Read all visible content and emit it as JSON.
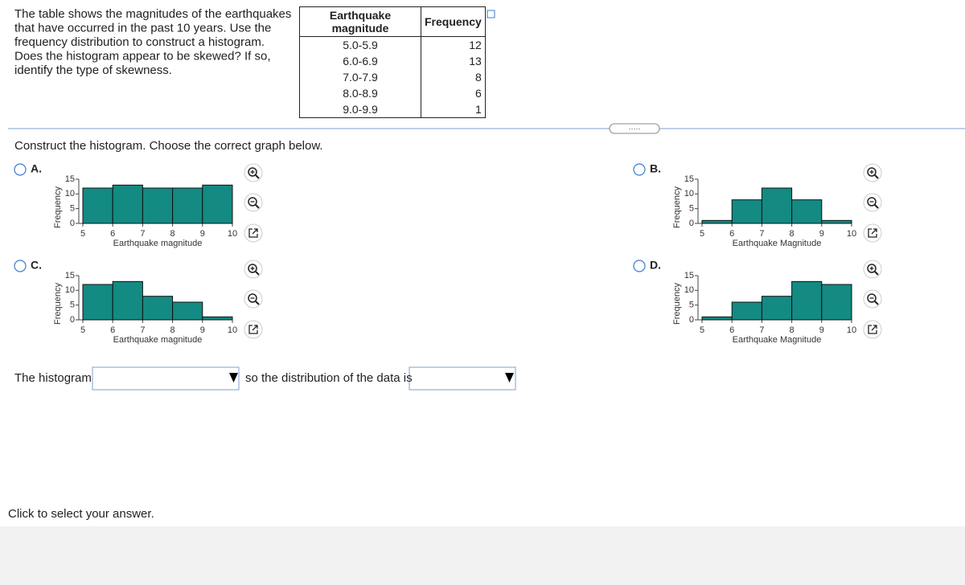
{
  "question": [
    "The table shows the magnitudes of the earthquakes",
    "that have occurred in the past 10 years. Use the",
    "frequency distribution to construct a histogram.",
    "Does the histogram appear to be skewed? If so,",
    "identify the type of skewness."
  ],
  "table": {
    "headers": [
      "Earthquake magnitude",
      "Frequency"
    ],
    "rows": [
      [
        "5.0-5.9",
        "12"
      ],
      [
        "6.0-6.9",
        "13"
      ],
      [
        "7.0-7.9",
        "8"
      ],
      [
        "8.0-8.9",
        "6"
      ],
      [
        "9.0-9.9",
        "1"
      ]
    ]
  },
  "prompt": "Construct the histogram. Choose the correct graph below.",
  "options": [
    {
      "label": "A.",
      "chart": {
        "type": "histogram",
        "bins": [
          5,
          6,
          7,
          8,
          9,
          10
        ],
        "values": [
          12,
          13,
          12,
          12,
          13
        ],
        "color": "#138a82",
        "xlabel": "Earthquake magnitude",
        "ylabel": "Frequency",
        "xlim": [
          5,
          10
        ],
        "xticks": [
          5,
          6,
          7,
          8,
          9,
          10
        ],
        "ylim": [
          0,
          15
        ],
        "yticks": [
          0,
          5,
          10,
          15
        ]
      }
    },
    {
      "label": "B.",
      "chart": {
        "type": "histogram",
        "bins": [
          5,
          6,
          7,
          8,
          9,
          10
        ],
        "values": [
          1,
          8,
          12,
          8,
          1
        ],
        "color": "#138a82",
        "xlabel": "Earthquake Magnitude",
        "ylabel": "Frequency",
        "xlim": [
          5,
          10
        ],
        "xticks": [
          5,
          6,
          7,
          8,
          9,
          10
        ],
        "ylim": [
          0,
          15
        ],
        "yticks": [
          0,
          5,
          10,
          15
        ]
      }
    },
    {
      "label": "C.",
      "chart": {
        "type": "histogram",
        "bins": [
          5,
          6,
          7,
          8,
          9,
          10
        ],
        "values": [
          12,
          13,
          8,
          6,
          1
        ],
        "color": "#138a82",
        "xlabel": "Earthquake magnitude",
        "ylabel": "Frequency",
        "xlim": [
          5,
          10
        ],
        "xticks": [
          5,
          6,
          7,
          8,
          9,
          10
        ],
        "ylim": [
          0,
          15
        ],
        "yticks": [
          0,
          5,
          10,
          15
        ]
      }
    },
    {
      "label": "D.",
      "chart": {
        "type": "histogram",
        "bins": [
          5,
          6,
          7,
          8,
          9,
          10
        ],
        "values": [
          1,
          6,
          8,
          13,
          12
        ],
        "color": "#138a82",
        "xlabel": "Earthquake Magnitude",
        "ylabel": "Frequency",
        "xlim": [
          5,
          10
        ],
        "xticks": [
          5,
          6,
          7,
          8,
          9,
          10
        ],
        "ylim": [
          0,
          15
        ],
        "yticks": [
          0,
          5,
          10,
          15
        ]
      }
    }
  ],
  "answer": {
    "before": "The histogram",
    "middle": "so the distribution of the data is"
  },
  "footer": "Click to select your answer."
}
